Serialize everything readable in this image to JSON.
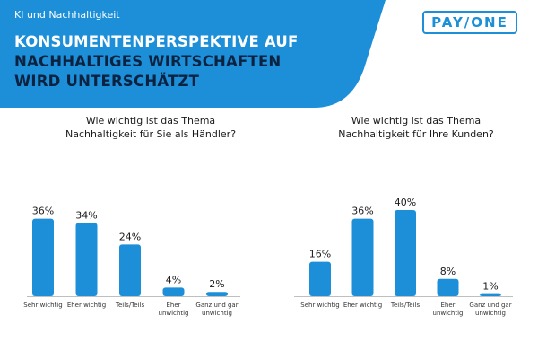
{
  "header": {
    "kicker": "KI und Nachhaltigkeit",
    "headline_line1": "KONSUMENTENPERSPEKTIVE AUF",
    "headline_line2": "NACHHALTIGES WIRTSCHAFTEN",
    "headline_line3": "WIRD UNTERSCHÄTZT",
    "logo_text": "PAY/ONE"
  },
  "colors": {
    "brand_blue": "#1c8fd8",
    "headline_dark": "#0b2240",
    "axis_gray": "#bfbfbf"
  },
  "chart_data": [
    {
      "type": "bar",
      "title": "Wie wichtig ist das Thema Nachhaltigkeit für Sie als Händler?",
      "title_lines": [
        "Wie wichtig ist das Thema",
        "Nachhaltigkeit für Sie als Händler?"
      ],
      "categories": [
        "Sehr wichtig",
        "Eher wichtig",
        "Teils/Teils",
        "Eher unwichtig",
        "Ganz und gar unwichtig"
      ],
      "category_lines": [
        [
          "Sehr wichtig"
        ],
        [
          "Eher wichtig"
        ],
        [
          "Teils/Teils"
        ],
        [
          "Eher",
          "unwichtig"
        ],
        [
          "Ganz und gar",
          "unwichtig"
        ]
      ],
      "values": [
        36,
        34,
        24,
        4,
        2
      ],
      "value_labels": [
        "36%",
        "34%",
        "24%",
        "4%",
        "2%"
      ],
      "ylim": [
        0,
        40
      ],
      "grid": false
    },
    {
      "type": "bar",
      "title": "Wie wichtig ist das Thema Nachhaltigkeit für Ihre Kunden?",
      "title_lines": [
        "Wie wichtig ist das Thema",
        "Nachhaltigkeit für Ihre Kunden?"
      ],
      "categories": [
        "Sehr wichtig",
        "Eher wichtig",
        "Teils/Teils",
        "Eher unwichtig",
        "Ganz und gar unwichtig"
      ],
      "category_lines": [
        [
          "Sehr wichtig"
        ],
        [
          "Eher wichtig"
        ],
        [
          "Teils/Teils"
        ],
        [
          "Eher",
          "unwichtig"
        ],
        [
          "Ganz und gar",
          "unwichtig"
        ]
      ],
      "values": [
        16,
        36,
        40,
        8,
        1
      ],
      "value_labels": [
        "16%",
        "36%",
        "40%",
        "8%",
        "1%"
      ],
      "ylim": [
        0,
        40
      ],
      "grid": false
    }
  ]
}
